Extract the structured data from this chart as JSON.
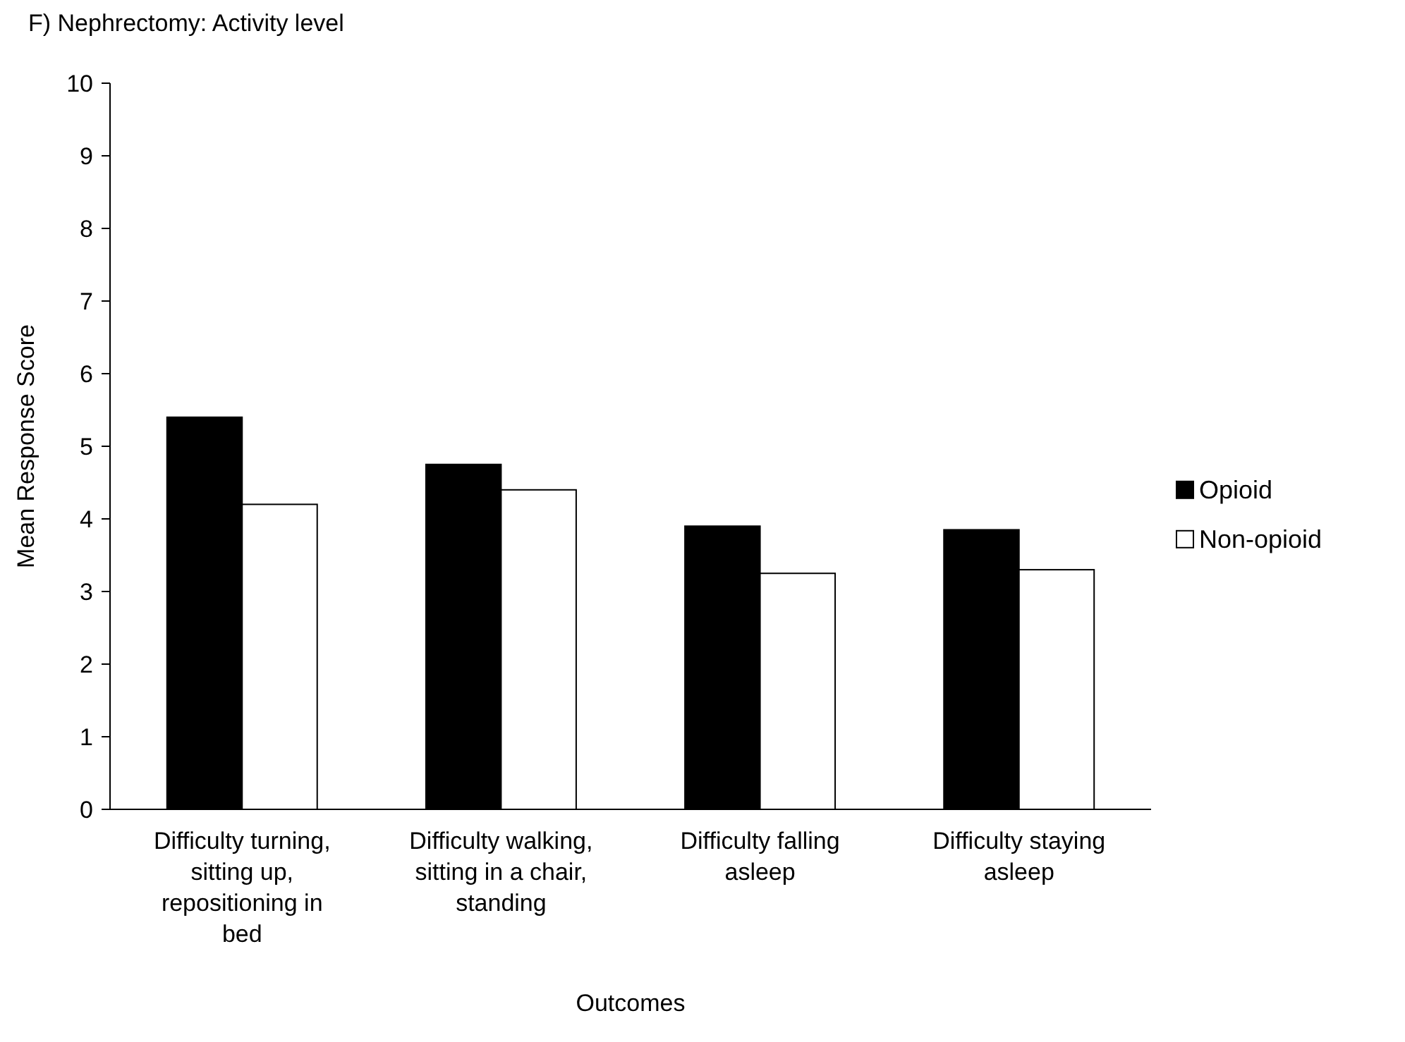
{
  "chart_data": {
    "type": "bar",
    "title": "F) Nephrectomy: Activity level",
    "xlabel": "Outcomes",
    "ylabel": "Mean Response Score",
    "categories": [
      "Difficulty turning, sitting up, repositioning in bed",
      "Difficulty walking, sitting in a chair, standing",
      "Difficulty falling asleep",
      "Difficulty staying asleep"
    ],
    "series": [
      {
        "name": "Opioid",
        "color": "#000000",
        "values": [
          5.4,
          4.75,
          3.9,
          3.85
        ]
      },
      {
        "name": "Non-opioid",
        "color": "#ffffff",
        "values": [
          4.2,
          4.4,
          3.25,
          3.3
        ]
      }
    ],
    "ylim": [
      0,
      10
    ],
    "yticks": [
      0,
      1,
      2,
      3,
      4,
      5,
      6,
      7,
      8,
      9,
      10
    ],
    "grid": false,
    "legend": "right"
  }
}
